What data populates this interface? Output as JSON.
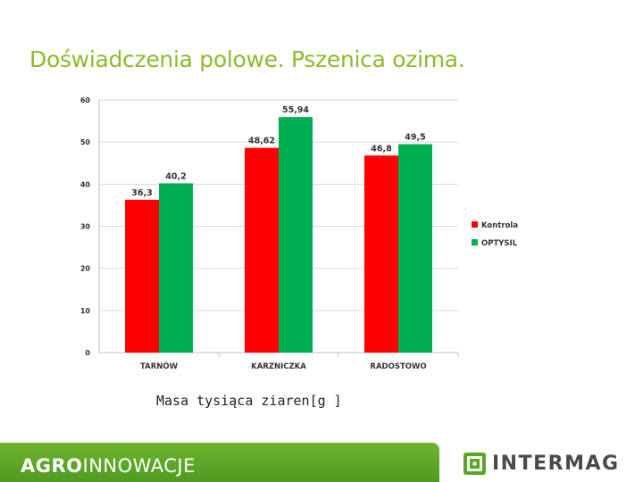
{
  "slide": {
    "title": "Doświadczenia polowe. Pszenica ozima.",
    "caption": "Masa tysiąca ziaren[g ]"
  },
  "footer": {
    "brand_bold": "AGRO",
    "brand_light": "INNOWACJE",
    "logo_text": "INTERMAG",
    "logo_icon": "intermag-logo-icon"
  },
  "colors": {
    "title": "#8dbb2a",
    "kontrola": "#ff0000",
    "optysil": "#00b050",
    "footer": "#5aa526"
  },
  "chart_data": {
    "type": "bar",
    "categories": [
      "TARNÓW",
      "KARZNICZKA",
      "RADOSTOWO"
    ],
    "series": [
      {
        "name": "Kontrola",
        "values": [
          36.3,
          48.62,
          46.8
        ],
        "labels": [
          "36,3",
          "48,62",
          "46,8"
        ],
        "color": "#ff0000"
      },
      {
        "name": "OPTYSIL",
        "values": [
          40.2,
          55.94,
          49.5
        ],
        "labels": [
          "40,2",
          "55,94",
          "49,5"
        ],
        "color": "#00b050"
      }
    ],
    "ylim": [
      0,
      60
    ],
    "yticks": [
      0,
      10,
      20,
      30,
      40,
      50,
      60
    ],
    "grid": true,
    "legend": "right"
  }
}
